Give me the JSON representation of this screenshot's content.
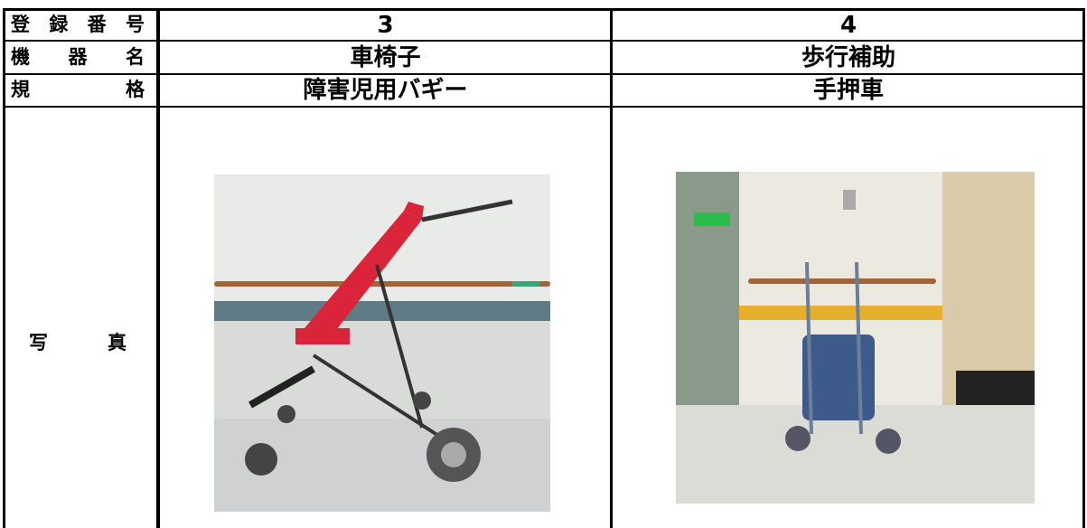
{
  "table": {
    "rows": [
      {
        "label": "登録番号",
        "values": [
          "3",
          "4"
        ]
      },
      {
        "label": "機器名",
        "values": [
          "車椅子",
          "歩行補助"
        ]
      },
      {
        "label": "規格",
        "values": [
          "障害児用バギー",
          "手押車"
        ]
      },
      {
        "label": "写真"
      }
    ]
  }
}
